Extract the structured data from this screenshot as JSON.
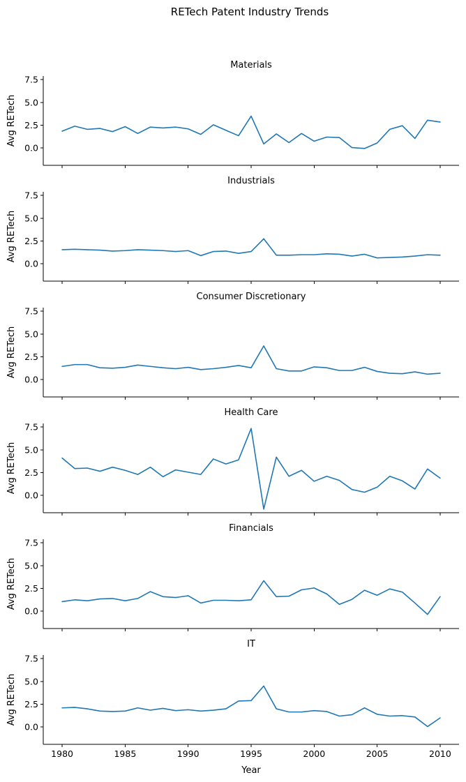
{
  "chart_data": {
    "type": "line",
    "title": "RETech Patent Industry Trends",
    "xlabel": "Year",
    "ylabel": "Avg RETech",
    "x": [
      1980,
      1981,
      1982,
      1983,
      1984,
      1985,
      1986,
      1987,
      1988,
      1989,
      1990,
      1991,
      1992,
      1993,
      1994,
      1995,
      1996,
      1997,
      1998,
      1999,
      2000,
      2001,
      2002,
      2003,
      2004,
      2005,
      2006,
      2007,
      2008,
      2009,
      2010
    ],
    "xlim": [
      1978.5,
      2011.5
    ],
    "ylim": [
      -1.9,
      7.9
    ],
    "x_ticks": [
      "1980",
      "1985",
      "1990",
      "1995",
      "2000",
      "2005",
      "2010"
    ],
    "y_ticks": [
      "7.5",
      "5.0",
      "2.5",
      "0.0"
    ],
    "grid": false,
    "panels": [
      {
        "title": "Materials",
        "values": [
          1.85,
          2.4,
          2.05,
          2.15,
          1.8,
          2.35,
          1.6,
          2.3,
          2.2,
          2.3,
          2.1,
          1.5,
          2.55,
          1.95,
          1.35,
          3.5,
          0.45,
          1.55,
          0.6,
          1.6,
          0.75,
          1.2,
          1.15,
          0.05,
          -0.05,
          0.55,
          2.05,
          2.45,
          1.05,
          3.05,
          2.85
        ]
      },
      {
        "title": "Industrials",
        "values": [
          1.55,
          1.6,
          1.55,
          1.5,
          1.4,
          1.45,
          1.55,
          1.5,
          1.45,
          1.35,
          1.45,
          0.9,
          1.35,
          1.4,
          1.15,
          1.35,
          2.75,
          0.95,
          0.95,
          1.0,
          1.0,
          1.1,
          1.05,
          0.85,
          1.05,
          0.65,
          0.7,
          0.75,
          0.85,
          1.0,
          0.95
        ]
      },
      {
        "title": "Consumer Discretionary",
        "values": [
          1.45,
          1.65,
          1.65,
          1.3,
          1.25,
          1.35,
          1.6,
          1.45,
          1.3,
          1.2,
          1.35,
          1.1,
          1.2,
          1.35,
          1.55,
          1.3,
          3.7,
          1.2,
          0.95,
          0.95,
          1.4,
          1.3,
          1.0,
          1.0,
          1.35,
          0.9,
          0.7,
          0.65,
          0.85,
          0.6,
          0.7
        ]
      },
      {
        "title": "Health Care",
        "values": [
          4.1,
          2.95,
          3.0,
          2.65,
          3.1,
          2.75,
          2.3,
          3.1,
          2.05,
          2.8,
          2.55,
          2.3,
          4.0,
          3.45,
          3.9,
          7.35,
          -1.5,
          4.2,
          2.1,
          2.75,
          1.55,
          2.1,
          1.65,
          0.65,
          0.35,
          0.9,
          2.1,
          1.6,
          0.7,
          2.9,
          1.9
        ]
      },
      {
        "title": "Financials",
        "values": [
          1.05,
          1.25,
          1.15,
          1.35,
          1.4,
          1.15,
          1.4,
          2.15,
          1.6,
          1.5,
          1.7,
          0.9,
          1.2,
          1.2,
          1.15,
          1.25,
          3.35,
          1.6,
          1.65,
          2.35,
          2.55,
          1.9,
          0.75,
          1.3,
          2.3,
          1.75,
          2.45,
          2.1,
          0.9,
          -0.35,
          1.6
        ]
      },
      {
        "title": "IT",
        "values": [
          2.1,
          2.15,
          2.0,
          1.75,
          1.7,
          1.75,
          2.1,
          1.85,
          2.05,
          1.8,
          1.9,
          1.75,
          1.85,
          2.0,
          2.85,
          2.9,
          4.5,
          2.0,
          1.65,
          1.65,
          1.8,
          1.7,
          1.2,
          1.35,
          2.1,
          1.4,
          1.2,
          1.25,
          1.1,
          0.05,
          1.0
        ]
      }
    ]
  }
}
